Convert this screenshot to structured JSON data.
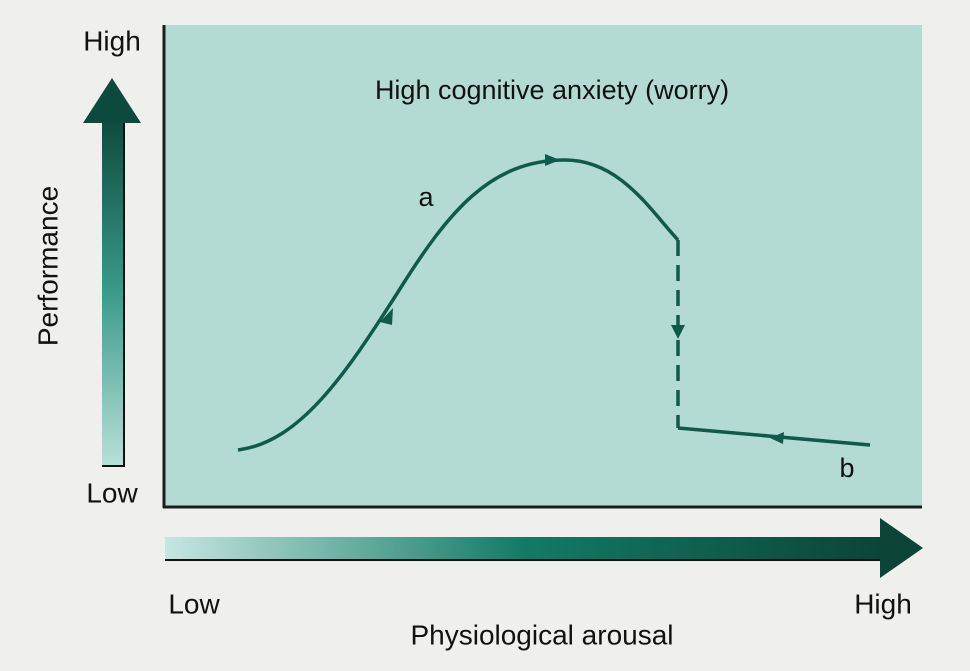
{
  "panel": {
    "title": "High cognitive anxiety (worry)"
  },
  "y_axis": {
    "label": "Performance",
    "high": "High",
    "low": "Low"
  },
  "x_axis": {
    "label": "Physiological arousal",
    "low": "Low",
    "high": "High"
  },
  "curve_labels": [
    "a",
    "b"
  ]
}
